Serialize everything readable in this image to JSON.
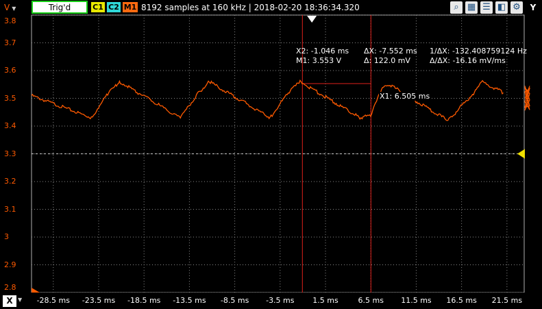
{
  "toolbar": {
    "axis_label": "V",
    "trigger_label": "Trig'd",
    "channels": [
      "C1",
      "C2",
      "M1"
    ],
    "info": "8192 samples at 160 kHz | 2018-02-20 18:36:34.320",
    "right_label": "Y",
    "icons": [
      "zoom-icon",
      "layout-icon",
      "list-icon",
      "channel-icon",
      "settings-icon"
    ]
  },
  "xaxis_bar": {
    "label": "X"
  },
  "readouts": {
    "x2": "X2: -1.046 ms",
    "m1": "M1: 3.553 V",
    "dx": "ΔX: -7.552 ms",
    "dv": "Δ: 122.0 mV",
    "inv_dx": "1/ΔX: -132.408759124 Hz",
    "slope": "Δ/ΔX: -16.16 mV/ms",
    "x1": "X1: 6.505 ms"
  },
  "colors": {
    "trace": "#ff5a00",
    "cursor": "#e0201a",
    "grid": "#8a8a8a",
    "trigger_marker": "#f0e000"
  },
  "chart_data": {
    "type": "line",
    "title": "",
    "xlabel": "",
    "ylabel": "V",
    "xlim": [
      -30.9,
      23.4
    ],
    "ylim": [
      2.8,
      3.8
    ],
    "x_ticks": [
      "-28.5 ms",
      "-23.5 ms",
      "-18.5 ms",
      "-13.5 ms",
      "-8.5 ms",
      "-3.5 ms",
      "1.5 ms",
      "6.5 ms",
      "11.5 ms",
      "16.5 ms",
      "21.5 ms"
    ],
    "x_tick_values": [
      -28.5,
      -23.5,
      -18.5,
      -13.5,
      -8.5,
      -3.5,
      1.5,
      6.5,
      11.5,
      16.5,
      21.5
    ],
    "y_ticks": [
      "3.8",
      "3.7",
      "3.6",
      "3.5",
      "3.4",
      "3.3",
      "3.2",
      "3.1",
      "3",
      "2.9",
      "2.8"
    ],
    "y_tick_values": [
      3.8,
      3.7,
      3.6,
      3.5,
      3.4,
      3.3,
      3.2,
      3.1,
      3.0,
      2.9,
      2.8
    ],
    "grid": true,
    "series": [
      {
        "x": [
          -30.9,
          -24.3,
          -22.4,
          -21.2,
          -14.5,
          -12.5,
          -11.3,
          -4.6,
          -2.6,
          -1.3,
          5.3,
          6.6,
          6.9,
          7.9,
          8.5,
          15.0,
          17.6,
          18.8,
          21.1
        ],
        "y": [
          3.51,
          3.43,
          3.52,
          3.56,
          3.43,
          3.52,
          3.56,
          3.43,
          3.52,
          3.56,
          3.43,
          3.44,
          3.48,
          3.54,
          3.55,
          3.42,
          3.51,
          3.56,
          3.52
        ]
      }
    ],
    "cursors": {
      "x1": 6.505,
      "x2": -1.046,
      "m1": 3.553
    },
    "trigger_level": 3.3
  }
}
